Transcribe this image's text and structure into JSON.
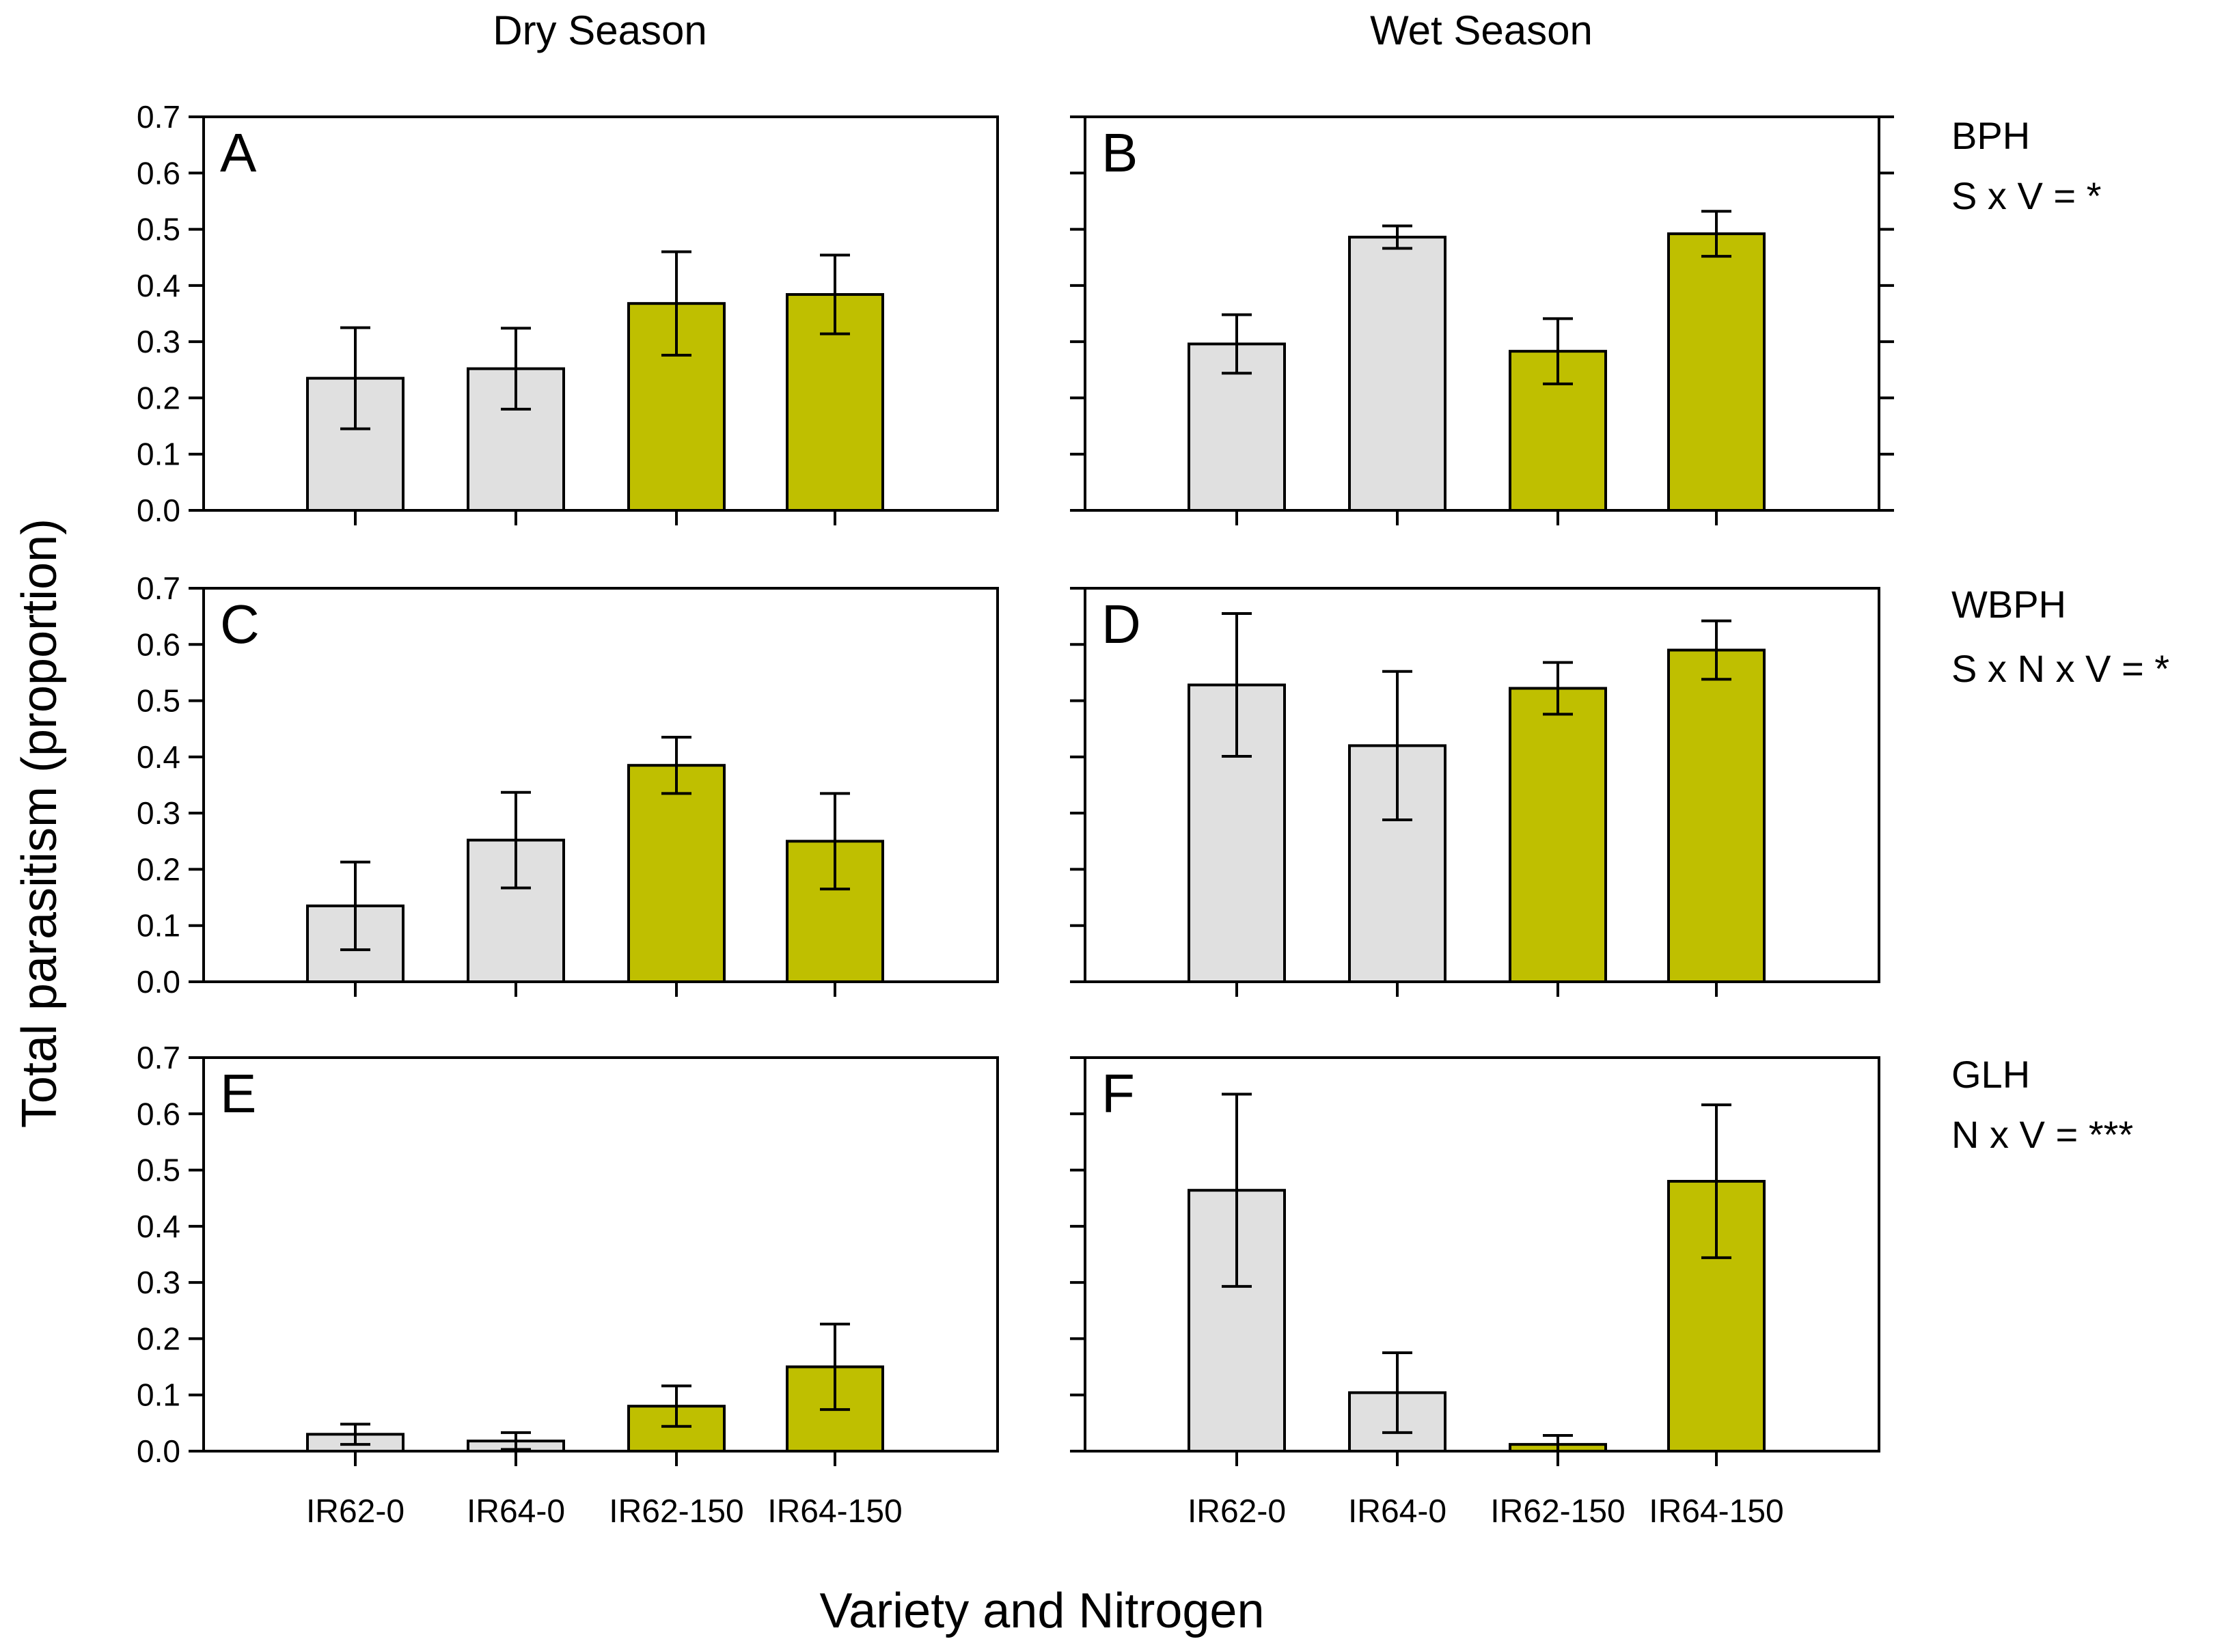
{
  "chart_data": {
    "type": "bar",
    "ylabel": "Total parasitism (proportion)",
    "xlabel": "Variety and Nitrogen",
    "ylim": [
      0,
      0.7
    ],
    "yticks": [
      "0.0",
      "0.1",
      "0.2",
      "0.3",
      "0.4",
      "0.5",
      "0.6",
      "0.7"
    ],
    "categories": [
      "IR62-0",
      "IR64-0",
      "IR62-150",
      "IR64-150"
    ],
    "column_titles": [
      "Dry Season",
      "Wet Season"
    ],
    "colors": {
      "nitrogen_0": "#e0e0e0",
      "nitrogen_150": "#bfbf00",
      "edge": "#000000"
    },
    "rows": [
      {
        "pest": "BPH",
        "stat": "S x V = *"
      },
      {
        "pest": "WBPH",
        "stat": "S x N x V = *"
      },
      {
        "pest": "GLH",
        "stat": "N x V = ***"
      }
    ],
    "panels": [
      {
        "label": "A",
        "season": "Dry Season",
        "pest": "BPH",
        "values": [
          0.235,
          0.252,
          0.368,
          0.384
        ],
        "errors": [
          0.09,
          0.072,
          0.092,
          0.07
        ]
      },
      {
        "label": "B",
        "season": "Wet Season",
        "pest": "BPH",
        "values": [
          0.296,
          0.486,
          0.283,
          0.492
        ],
        "errors": [
          0.052,
          0.02,
          0.058,
          0.04
        ]
      },
      {
        "label": "C",
        "season": "Dry Season",
        "pest": "WBPH",
        "values": [
          0.135,
          0.252,
          0.385,
          0.25
        ],
        "errors": [
          0.078,
          0.085,
          0.05,
          0.085
        ]
      },
      {
        "label": "D",
        "season": "Wet Season",
        "pest": "WBPH",
        "values": [
          0.528,
          0.42,
          0.522,
          0.59
        ],
        "errors": [
          0.127,
          0.132,
          0.046,
          0.052
        ]
      },
      {
        "label": "E",
        "season": "Dry Season",
        "pest": "GLH",
        "values": [
          0.03,
          0.018,
          0.08,
          0.15
        ],
        "errors": [
          0.018,
          0.015,
          0.036,
          0.076
        ]
      },
      {
        "label": "F",
        "season": "Wet Season",
        "pest": "GLH",
        "values": [
          0.464,
          0.104,
          0.012,
          0.48
        ],
        "errors": [
          0.171,
          0.071,
          0.016,
          0.136
        ]
      }
    ]
  }
}
